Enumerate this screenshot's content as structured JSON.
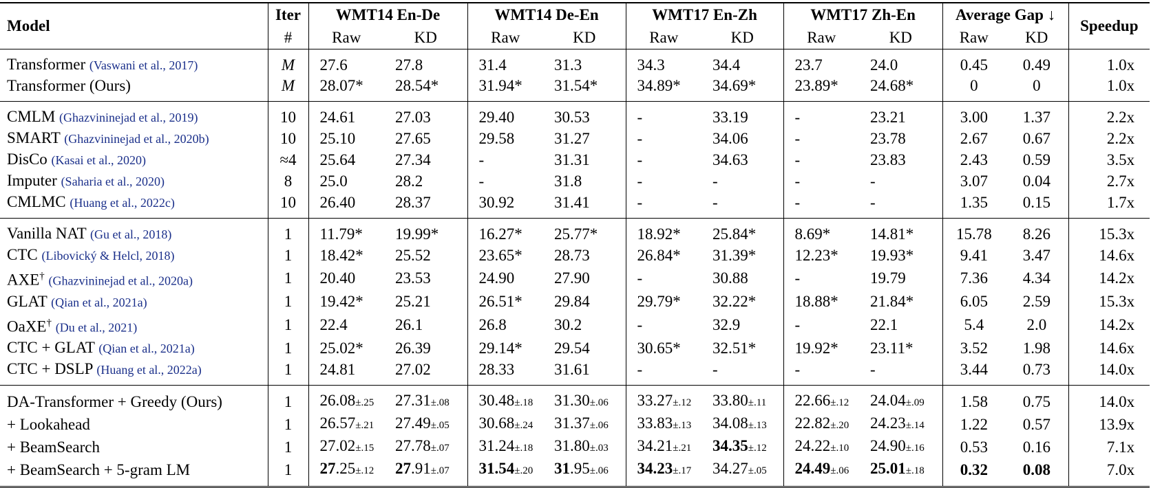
{
  "header": {
    "model": "Model",
    "iter": [
      "Iter",
      "#"
    ],
    "groups": [
      "WMT14 En-De",
      "WMT14 De-En",
      "WMT17 En-Zh",
      "WMT17 Zh-En",
      "Average Gap ↓"
    ],
    "sub": [
      "Raw",
      "KD"
    ],
    "speedup": "Speedup"
  },
  "groups": [
    [
      {
        "model": {
          "name": "Transformer",
          "cite": "(Vaswani et al., 2017)"
        },
        "iter": "M",
        "cells": [
          "27.6",
          "27.8",
          "31.4",
          "31.3",
          "34.3",
          "34.4",
          "23.7",
          "24.0",
          "0.45",
          "0.49"
        ],
        "speedup": "1.0x"
      },
      {
        "model": {
          "name": "Transformer (Ours)"
        },
        "iter": "M",
        "cells": [
          "28.07*",
          "28.54*",
          "31.94*",
          "31.54*",
          "34.89*",
          "34.69*",
          "23.89*",
          "24.68*",
          "0",
          "0"
        ],
        "speedup": "1.0x"
      }
    ],
    [
      {
        "model": {
          "name": "CMLM",
          "cite": "(Ghazvininejad et al., 2019)"
        },
        "iter": "10",
        "cells": [
          "24.61",
          "27.03",
          "29.40",
          "30.53",
          "-",
          "33.19",
          "-",
          "23.21",
          "3.00",
          "1.37"
        ],
        "speedup": "2.2x"
      },
      {
        "model": {
          "name": "SMART",
          "cite": "(Ghazvininejad et al., 2020b)"
        },
        "iter": "10",
        "cells": [
          "25.10",
          "27.65",
          "29.58",
          "31.27",
          "-",
          "34.06",
          "-",
          "23.78",
          "2.67",
          "0.67"
        ],
        "speedup": "2.2x"
      },
      {
        "model": {
          "name": "DisCo",
          "cite": "(Kasai et al., 2020)"
        },
        "iter": "≈4",
        "cells": [
          "25.64",
          "27.34",
          "-",
          "31.31",
          "-",
          "34.63",
          "-",
          "23.83",
          "2.43",
          "0.59"
        ],
        "speedup": "3.5x"
      },
      {
        "model": {
          "name": "Imputer",
          "cite": "(Saharia et al., 2020)"
        },
        "iter": "8",
        "cells": [
          "25.0",
          "28.2",
          "-",
          "31.8",
          "-",
          "-",
          "-",
          "-",
          "3.07",
          "0.04"
        ],
        "speedup": "2.7x"
      },
      {
        "model": {
          "name": "CMLMC",
          "cite": "(Huang et al., 2022c)"
        },
        "iter": "10",
        "cells": [
          "26.40",
          "28.37",
          "30.92",
          "31.41",
          "-",
          "-",
          "-",
          "-",
          "1.35",
          "0.15"
        ],
        "speedup": "1.7x"
      }
    ],
    [
      {
        "model": {
          "name": "Vanilla NAT",
          "cite": "(Gu et al., 2018)"
        },
        "iter": "1",
        "cells": [
          "11.79*",
          "19.99*",
          "16.27*",
          "25.77*",
          "18.92*",
          "25.84*",
          "8.69*",
          "14.81*",
          "15.78",
          "8.26"
        ],
        "speedup": "15.3x"
      },
      {
        "model": {
          "name": "CTC",
          "cite": "(Libovický & Helcl, 2018)"
        },
        "iter": "1",
        "cells": [
          "18.42*",
          "25.52",
          "23.65*",
          "28.73",
          "26.84*",
          "31.39*",
          "12.23*",
          "19.93*",
          "9.41",
          "3.47"
        ],
        "speedup": "14.6x"
      },
      {
        "model": {
          "name": "AXE",
          "sup": "†",
          "cite": "(Ghazvininejad et al., 2020a)"
        },
        "iter": "1",
        "cells": [
          "20.40",
          "23.53",
          "24.90",
          "27.90",
          "-",
          "30.88",
          "-",
          "19.79",
          "7.36",
          "4.34"
        ],
        "speedup": "14.2x"
      },
      {
        "model": {
          "name": "GLAT",
          "cite": "(Qian et al., 2021a)"
        },
        "iter": "1",
        "cells": [
          "19.42*",
          "25.21",
          "26.51*",
          "29.84",
          "29.79*",
          "32.22*",
          "18.88*",
          "21.84*",
          "6.05",
          "2.59"
        ],
        "speedup": "15.3x"
      },
      {
        "model": {
          "name": "OaXE",
          "sup": "†",
          "cite": "(Du et al., 2021)"
        },
        "iter": "1",
        "cells": [
          "22.4",
          "26.1",
          "26.8",
          "30.2",
          "-",
          "32.9",
          "-",
          "22.1",
          "5.4",
          "2.0"
        ],
        "speedup": "14.2x"
      },
      {
        "model": {
          "name": "CTC + GLAT",
          "cite": "(Qian et al., 2021a)"
        },
        "iter": "1",
        "cells": [
          "25.02*",
          "26.39",
          "29.14*",
          "29.54",
          "30.65*",
          "32.51*",
          "19.92*",
          "23.11*",
          "3.52",
          "1.98"
        ],
        "speedup": "14.6x"
      },
      {
        "model": {
          "name": "CTC + DSLP",
          "cite": "(Huang et al., 2022a)"
        },
        "iter": "1",
        "cells": [
          "24.81",
          "27.02",
          "28.33",
          "31.61",
          "-",
          "-",
          "-",
          "-",
          "3.44",
          "0.73"
        ],
        "speedup": "14.0x"
      }
    ],
    [
      {
        "model": {
          "name": "DA-Transformer + Greedy (Ours)"
        },
        "iter": "1",
        "cells": [
          {
            "v": "26.08",
            "sd": "±.25"
          },
          {
            "v": "27.31",
            "sd": "±.08"
          },
          {
            "v": "30.48",
            "sd": "±.18"
          },
          {
            "v": "31.30",
            "sd": "±.06"
          },
          {
            "v": "33.27",
            "sd": "±.12"
          },
          {
            "v": "33.80",
            "sd": "±.11"
          },
          {
            "v": "22.66",
            "sd": "±.12"
          },
          {
            "v": "24.04",
            "sd": "±.09"
          },
          "1.58",
          "0.75"
        ],
        "speedup": "14.0x"
      },
      {
        "model": {
          "name": "+ Lookahead"
        },
        "iter": "1",
        "cells": [
          {
            "v": "26.57",
            "sd": "±.21"
          },
          {
            "v": "27.49",
            "sd": "±.05"
          },
          {
            "v": "30.68",
            "sd": "±.24"
          },
          {
            "v": "31.37",
            "sd": "±.06"
          },
          {
            "v": "33.83",
            "sd": "±.13"
          },
          {
            "v": "34.08",
            "sd": "±.13"
          },
          {
            "v": "22.82",
            "sd": "±.20"
          },
          {
            "v": "24.23",
            "sd": "±.14"
          },
          "1.22",
          "0.57"
        ],
        "speedup": "13.9x"
      },
      {
        "model": {
          "name": "+ BeamSearch"
        },
        "iter": "1",
        "cells": [
          {
            "v": "27.02",
            "sd": "±.15"
          },
          {
            "v": "27.78",
            "sd": "±.07"
          },
          {
            "v": "31.24",
            "sd": "±.18"
          },
          {
            "v": "31.80",
            "sd": "±.03"
          },
          {
            "v": "34.21",
            "sd": "±.21"
          },
          {
            "b": "34.35",
            "sd": "±.12"
          },
          {
            "v": "24.22",
            "sd": "±.10"
          },
          {
            "v": "24.90",
            "sd": "±.16"
          },
          "0.53",
          "0.16"
        ],
        "speedup": "7.1x"
      },
      {
        "model": {
          "name": "+ BeamSearch + 5-gram LM"
        },
        "iter": "1",
        "cells": [
          {
            "b": "27",
            "v": ".25",
            "sd": "±.12"
          },
          {
            "b": "27",
            "v": ".91",
            "sd": "±.07"
          },
          {
            "b": "31.54",
            "sd": "±.20"
          },
          {
            "b": "31",
            "v": ".95",
            "sd": "±.06"
          },
          {
            "b": "34.23",
            "sd": "±.17"
          },
          {
            "v": "34.27",
            "sd": "±.05"
          },
          {
            "b": "24.49",
            "sd": "±.06"
          },
          {
            "b": "25.01",
            "sd": "±.18"
          },
          {
            "b": "0.32"
          },
          {
            "b": "0.08"
          }
        ],
        "speedup": "7.0x"
      }
    ]
  ]
}
